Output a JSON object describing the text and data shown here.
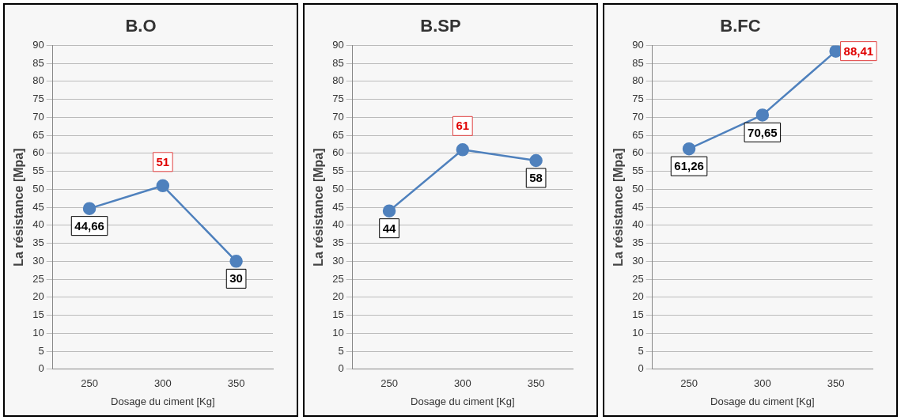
{
  "chart_data": [
    {
      "type": "line",
      "title": "B.O",
      "xlabel": "Dosage du ciment [Kg]",
      "ylabel": "La résistance [Mpa]",
      "categories": [
        "250",
        "300",
        "350"
      ],
      "series": [
        {
          "color": "#4f81bd",
          "values": [
            44.66,
            51,
            30
          ],
          "value_labels": [
            "44,66",
            "51",
            "30"
          ]
        }
      ],
      "ylim": [
        0,
        90
      ],
      "yticks": [
        0,
        5,
        10,
        15,
        20,
        25,
        30,
        35,
        40,
        45,
        50,
        55,
        60,
        65,
        70,
        75,
        80,
        85,
        90
      ],
      "grid": "y",
      "legend": false,
      "marker": "circle",
      "line_style": "solid"
    },
    {
      "type": "line",
      "title": "B.SP",
      "xlabel": "Dosage du ciment [Kg]",
      "ylabel": "La résistance [Mpa]",
      "categories": [
        "250",
        "300",
        "350"
      ],
      "series": [
        {
          "color": "#4f81bd",
          "values": [
            44,
            61,
            58
          ],
          "value_labels": [
            "44",
            "61",
            "58"
          ]
        }
      ],
      "ylim": [
        0,
        90
      ],
      "yticks": [
        0,
        5,
        10,
        15,
        20,
        25,
        30,
        35,
        40,
        45,
        50,
        55,
        60,
        65,
        70,
        75,
        80,
        85,
        90
      ],
      "grid": "y",
      "legend": false,
      "marker": "circle",
      "line_style": "solid"
    },
    {
      "type": "line",
      "title": "B.FC",
      "xlabel": "Dosage du ciment [Kg]",
      "ylabel": "La résistance [Mpa]",
      "categories": [
        "250",
        "300",
        "350"
      ],
      "series": [
        {
          "color": "#4f81bd",
          "values": [
            61.26,
            70.65,
            88.41
          ],
          "value_labels": [
            "61,26",
            "70,65",
            "88,41"
          ]
        }
      ],
      "ylim": [
        0,
        90
      ],
      "yticks": [
        0,
        5,
        10,
        15,
        20,
        25,
        30,
        35,
        40,
        45,
        50,
        55,
        60,
        65,
        70,
        75,
        80,
        85,
        90
      ],
      "grid": "y",
      "legend": false,
      "marker": "circle",
      "line_style": "solid"
    }
  ]
}
